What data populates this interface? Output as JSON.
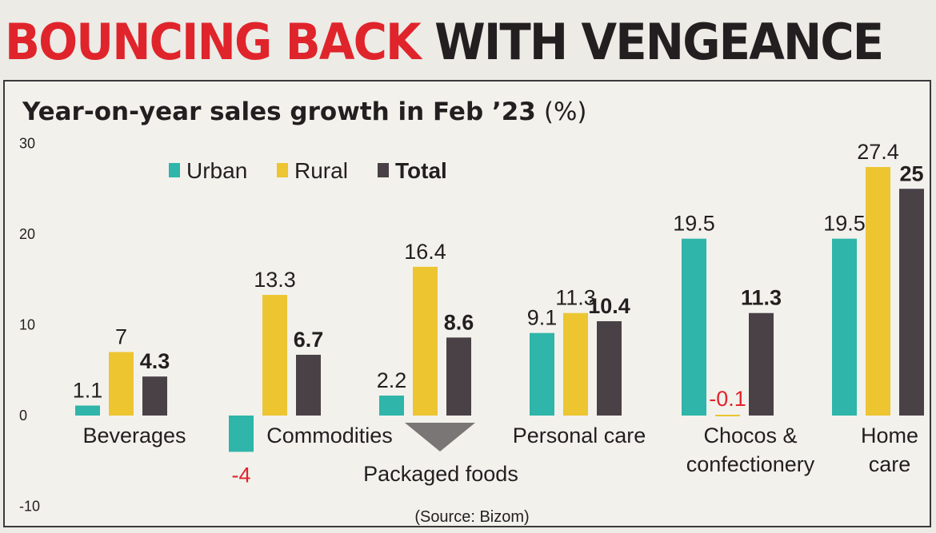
{
  "headline": {
    "part1": "BOUNCING BACK",
    "part2": "WITH VENGEANCE"
  },
  "colors": {
    "urban": "#2fb5a9",
    "rural": "#ecc531",
    "total": "#4a4146",
    "negative_label": "#e0242b",
    "headline_red": "#e0242b"
  },
  "chart_data": {
    "type": "bar",
    "title": "Year-on-year sales growth in Feb ’23",
    "unit": "(%)",
    "categories": [
      "Beverages",
      "Commodities",
      "Packaged foods",
      "Personal care",
      "Chocos & confectionery",
      "Home care"
    ],
    "category_label_lines": [
      [
        "Beverages"
      ],
      [
        "Commodities"
      ],
      [
        "Packaged foods"
      ],
      [
        "Personal care"
      ],
      [
        "Chocos &",
        "confectionery"
      ],
      [
        "Home",
        "care"
      ]
    ],
    "series": [
      {
        "name": "Urban",
        "values": [
          1.1,
          -4,
          2.2,
          9.1,
          19.5,
          19.5
        ],
        "labels": [
          "1.1",
          "-4",
          "2.2",
          "9.1",
          "19.5",
          "19.5"
        ]
      },
      {
        "name": "Rural",
        "values": [
          7,
          13.3,
          16.4,
          11.3,
          -0.1,
          27.4
        ],
        "labels": [
          "7",
          "13.3",
          "16.4",
          "11.3",
          "-0.1",
          "27.4"
        ]
      },
      {
        "name": "Total",
        "values": [
          4.3,
          6.7,
          8.6,
          10.4,
          11.3,
          25
        ],
        "labels": [
          "4.3",
          "6.7",
          "8.6",
          "10.4",
          "11.3",
          "25"
        ]
      }
    ],
    "ylim": [
      -10,
      30
    ],
    "yticks": [
      30,
      20,
      10,
      0,
      -10
    ],
    "legend": [
      "Urban",
      "Rural",
      "Total"
    ],
    "legend_position": "top-left",
    "source": "(Source: Bizom)"
  }
}
